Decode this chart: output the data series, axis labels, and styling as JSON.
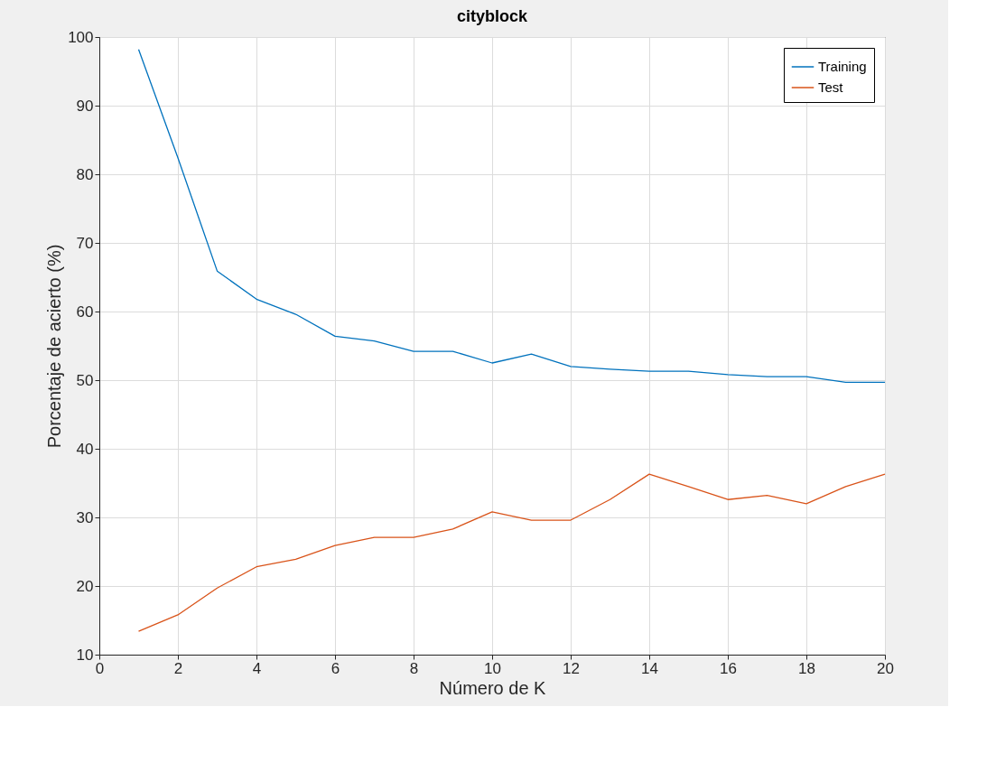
{
  "chart_data": {
    "type": "line",
    "title": "cityblock",
    "xlabel": "Número de K",
    "ylabel": "Porcentaje de acierto (%)",
    "x": [
      1,
      2,
      3,
      4,
      5,
      6,
      7,
      8,
      9,
      10,
      11,
      12,
      13,
      14,
      15,
      16,
      17,
      18,
      19,
      20
    ],
    "series": [
      {
        "name": "Training",
        "color": "#0072bd",
        "values": [
          98.2,
          82.4,
          65.9,
          61.8,
          59.6,
          56.4,
          55.7,
          54.2,
          54.2,
          52.5,
          53.8,
          52.0,
          51.6,
          51.3,
          51.3,
          50.8,
          50.5,
          50.5,
          49.7,
          49.7
        ]
      },
      {
        "name": "Test",
        "color": "#d95319",
        "values": [
          13.4,
          15.8,
          19.7,
          22.8,
          23.9,
          25.9,
          27.1,
          27.1,
          28.3,
          30.8,
          29.6,
          29.6,
          32.6,
          36.3,
          34.5,
          32.6,
          33.2,
          32.0,
          34.5,
          36.3
        ]
      }
    ],
    "xlim": [
      0,
      20
    ],
    "xticks": [
      0,
      2,
      4,
      6,
      8,
      10,
      12,
      14,
      16,
      18,
      20
    ],
    "ylim": [
      10,
      100
    ],
    "yticks": [
      10,
      20,
      30,
      40,
      50,
      60,
      70,
      80,
      90,
      100
    ],
    "grid": true,
    "legend": "top right",
    "marker": "none",
    "line_style": "solid"
  }
}
